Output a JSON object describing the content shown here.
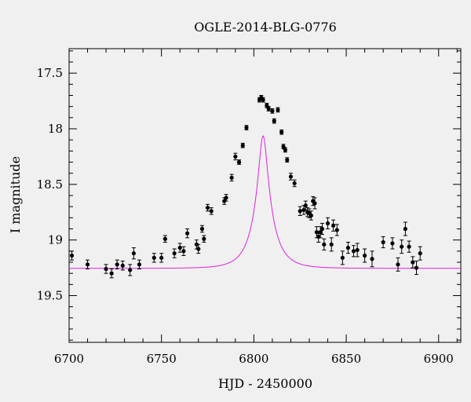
{
  "chart_data": {
    "type": "scatter",
    "title": "OGLE-2014-BLG-0776",
    "xlabel": "HJD - 2450000",
    "ylabel": "I magnitude",
    "xlim": [
      6700,
      6912
    ],
    "ylim": [
      19.92,
      17.28
    ],
    "y_inverted": true,
    "x_ticks": [
      6700,
      6750,
      6800,
      6850,
      6900
    ],
    "y_ticks": [
      17.5,
      18,
      18.5,
      19,
      19.5
    ],
    "y_tick_labels": [
      "17.5",
      "18",
      "18.5",
      "19",
      "19.5"
    ],
    "grid": false,
    "colors": {
      "background": "#f0f0f0",
      "points": "#000000",
      "model": "#dd22dd"
    },
    "series": [
      {
        "type": "errorbar",
        "x": [
          6701.5,
          6710,
          6720,
          6723,
          6726,
          6729,
          6733,
          6735,
          6738,
          6746,
          6750,
          6752,
          6757,
          6760,
          6762,
          6764,
          6769,
          6770,
          6772,
          6773,
          6775,
          6777,
          6784,
          6785,
          6788,
          6790,
          6792,
          6794,
          6796,
          6803,
          6804,
          6805,
          6807,
          6808,
          6810,
          6811,
          6813,
          6815,
          6816,
          6817,
          6818,
          6820,
          6822,
          6825,
          6827,
          6828,
          6829,
          6830,
          6831,
          6832,
          6833,
          6834,
          6835,
          6836,
          6837,
          6838,
          6840,
          6842,
          6843,
          6845,
          6848,
          6851,
          6854,
          6856,
          6860,
          6864,
          6870,
          6875,
          6878,
          6880,
          6882,
          6884,
          6886,
          6888,
          6890
        ],
        "y": [
          19.14,
          19.22,
          19.26,
          19.3,
          19.22,
          19.23,
          19.27,
          19.12,
          19.22,
          19.16,
          19.16,
          18.99,
          19.12,
          19.07,
          19.1,
          18.94,
          19.04,
          19.08,
          18.9,
          18.99,
          18.71,
          18.74,
          18.65,
          18.62,
          18.44,
          18.25,
          18.3,
          18.15,
          17.99,
          17.74,
          17.72,
          17.74,
          17.79,
          17.82,
          17.84,
          17.93,
          17.83,
          18.03,
          18.16,
          18.19,
          18.28,
          18.43,
          18.49,
          18.74,
          18.73,
          18.69,
          18.75,
          18.76,
          18.78,
          18.65,
          18.67,
          18.93,
          18.97,
          18.93,
          18.9,
          19.04,
          18.85,
          19.04,
          18.87,
          18.91,
          19.16,
          19.07,
          19.1,
          19.09,
          19.14,
          19.17,
          19.02,
          19.03,
          19.22,
          19.06,
          18.9,
          19.06,
          19.2,
          19.25,
          19.12
        ],
        "yerr": [
          0.04,
          0.04,
          0.04,
          0.04,
          0.04,
          0.04,
          0.05,
          0.05,
          0.04,
          0.04,
          0.04,
          0.03,
          0.04,
          0.04,
          0.04,
          0.04,
          0.04,
          0.04,
          0.03,
          0.03,
          0.03,
          0.03,
          0.03,
          0.03,
          0.03,
          0.03,
          0.02,
          0.02,
          0.02,
          0.02,
          0.02,
          0.02,
          0.02,
          0.02,
          0.02,
          0.02,
          0.02,
          0.02,
          0.02,
          0.02,
          0.02,
          0.03,
          0.03,
          0.04,
          0.04,
          0.04,
          0.04,
          0.04,
          0.04,
          0.04,
          0.05,
          0.05,
          0.05,
          0.05,
          0.05,
          0.05,
          0.05,
          0.06,
          0.05,
          0.05,
          0.06,
          0.05,
          0.05,
          0.06,
          0.06,
          0.07,
          0.05,
          0.05,
          0.06,
          0.06,
          0.06,
          0.05,
          0.05,
          0.06,
          0.06
        ]
      },
      {
        "type": "model-curve",
        "t0": 6805,
        "tE": 10.5,
        "u0": 0.22,
        "baseline_mag": 19.255,
        "blend_fraction": 0.55
      }
    ]
  }
}
